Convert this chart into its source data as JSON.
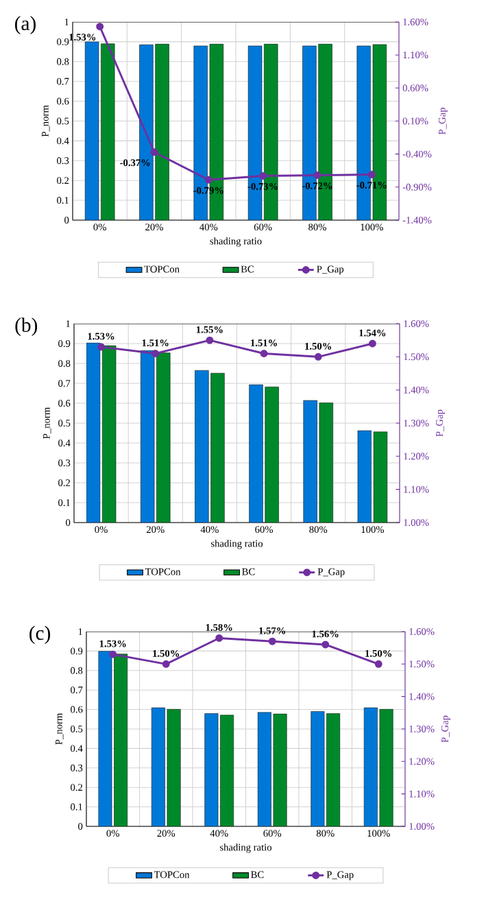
{
  "chart_data": [
    {
      "type": "bar",
      "title": "(a)",
      "xlabel": "shading ratio",
      "ylabel": "P_norm",
      "y2label": "P_Gap",
      "categories": [
        "0%",
        "20%",
        "40%",
        "60%",
        "80%",
        "100%"
      ],
      "series": [
        {
          "name": "TOPCon",
          "color": "#0078d7",
          "values": [
            0.9,
            0.885,
            0.879,
            0.879,
            0.879,
            0.879
          ]
        },
        {
          "name": "BC",
          "color": "#00892b",
          "values": [
            0.89,
            0.888,
            0.888,
            0.888,
            0.888,
            0.886
          ]
        },
        {
          "name": "P_Gap",
          "type": "line",
          "axis": "y2",
          "color": "#7030a0",
          "marker": "circle",
          "values": [
            1.53,
            -0.37,
            -0.79,
            -0.73,
            -0.72,
            -0.71
          ],
          "value_labels": [
            "1.53%",
            "-0.37%",
            "-0.79%",
            "-0.73%",
            "-0.72%",
            "-0.71%"
          ]
        }
      ],
      "ylim": [
        0,
        1
      ],
      "yticks": [
        0,
        0.1,
        0.2,
        0.3,
        0.4,
        0.5,
        0.6,
        0.7,
        0.8,
        0.9,
        1
      ],
      "y2lim": [
        -1.4,
        1.6
      ],
      "y2ticks": [
        {
          "value": -1.4,
          "label": "-1.40%"
        },
        {
          "value": -0.9,
          "label": "-0.90%"
        },
        {
          "value": -0.4,
          "label": "-0.40%"
        },
        {
          "value": 0.1,
          "label": "0.10%"
        },
        {
          "value": 0.6,
          "label": "0.60%"
        },
        {
          "value": 1.1,
          "label": "1.10%"
        },
        {
          "value": 1.6,
          "label": "1.60%"
        }
      ],
      "grid": true,
      "legend": "bottom"
    },
    {
      "type": "bar",
      "title": "(b)",
      "xlabel": "shading ratio",
      "ylabel": "P_norm",
      "y2label": "P_Gap",
      "categories": [
        "0%",
        "20%",
        "40%",
        "60%",
        "80%",
        "100%"
      ],
      "series": [
        {
          "name": "TOPCon",
          "color": "#0078d7",
          "values": [
            0.903,
            0.865,
            0.765,
            0.693,
            0.614,
            0.462
          ]
        },
        {
          "name": "BC",
          "color": "#00892b",
          "values": [
            0.89,
            0.853,
            0.751,
            0.682,
            0.602,
            0.456
          ]
        },
        {
          "name": "P_Gap",
          "type": "line",
          "axis": "y2",
          "color": "#7030a0",
          "marker": "circle",
          "values": [
            1.53,
            1.51,
            1.55,
            1.51,
            1.5,
            1.54
          ],
          "value_labels": [
            "1.53%",
            "1.51%",
            "1.55%",
            "1.51%",
            "1.50%",
            "1.54%"
          ]
        }
      ],
      "ylim": [
        0,
        1
      ],
      "yticks": [
        0,
        0.1,
        0.2,
        0.3,
        0.4,
        0.5,
        0.6,
        0.7,
        0.8,
        0.9,
        1
      ],
      "y2lim": [
        1.0,
        1.6
      ],
      "y2ticks": [
        {
          "value": 1.0,
          "label": "1.00%"
        },
        {
          "value": 1.1,
          "label": "1.10%"
        },
        {
          "value": 1.2,
          "label": "1.20%"
        },
        {
          "value": 1.3,
          "label": "1.30%"
        },
        {
          "value": 1.4,
          "label": "1.40%"
        },
        {
          "value": 1.5,
          "label": "1.50%"
        },
        {
          "value": 1.6,
          "label": "1.60%"
        }
      ],
      "grid": true,
      "legend": "bottom"
    },
    {
      "type": "bar",
      "title": "(c)",
      "xlabel": "shading ratio",
      "ylabel": "P_norm",
      "y2label": "P_Gap",
      "categories": [
        "0%",
        "20%",
        "40%",
        "60%",
        "80%",
        "100%"
      ],
      "series": [
        {
          "name": "TOPCon",
          "color": "#0078d7",
          "values": [
            0.899,
            0.609,
            0.579,
            0.585,
            0.59,
            0.609
          ]
        },
        {
          "name": "BC",
          "color": "#00892b",
          "values": [
            0.885,
            0.601,
            0.571,
            0.577,
            0.579,
            0.601
          ]
        },
        {
          "name": "P_Gap",
          "type": "line",
          "axis": "y2",
          "color": "#7030a0",
          "marker": "circle",
          "values": [
            1.53,
            1.5,
            1.58,
            1.57,
            1.56,
            1.5
          ],
          "value_labels": [
            "1.53%",
            "1.50%",
            "1.58%",
            "1.57%",
            "1.56%",
            "1.50%"
          ]
        }
      ],
      "ylim": [
        0,
        1
      ],
      "yticks": [
        0,
        0.1,
        0.2,
        0.3,
        0.4,
        0.5,
        0.6,
        0.7,
        0.8,
        0.9,
        1
      ],
      "y2lim": [
        1.0,
        1.6
      ],
      "y2ticks": [
        {
          "value": 1.0,
          "label": "1.00%"
        },
        {
          "value": 1.1,
          "label": "1.10%"
        },
        {
          "value": 1.2,
          "label": "1.20%"
        },
        {
          "value": 1.3,
          "label": "1.30%"
        },
        {
          "value": 1.4,
          "label": "1.40%"
        },
        {
          "value": 1.5,
          "label": "1.50%"
        },
        {
          "value": 1.6,
          "label": "1.60%"
        }
      ],
      "grid": true,
      "legend": "bottom"
    }
  ]
}
